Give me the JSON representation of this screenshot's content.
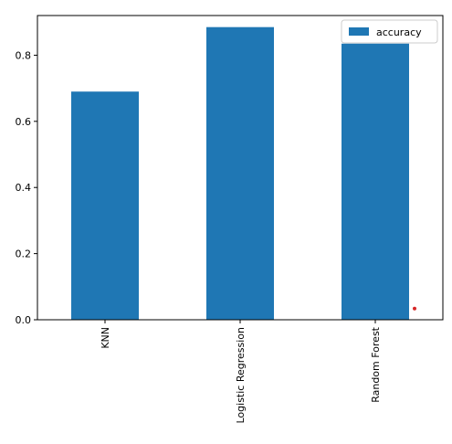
{
  "chart_data": {
    "type": "bar",
    "title": "",
    "xlabel": "",
    "ylabel": "",
    "categories": [
      "KNN",
      "Logistic Regression",
      "Random Forest"
    ],
    "series": [
      {
        "name": "accuracy",
        "values": [
          0.69,
          0.885,
          0.835
        ]
      }
    ],
    "ylim": [
      0,
      0.92
    ],
    "yticks": [
      0.0,
      0.2,
      0.4,
      0.6,
      0.8
    ],
    "ytick_labels": [
      "0.0",
      "0.2",
      "0.4",
      "0.6",
      "0.8"
    ],
    "grid": false,
    "legend": {
      "location": "top-right",
      "entries": [
        "accuracy"
      ]
    },
    "x_tick_rotation": "vertical",
    "bar_color": "#1f77b4",
    "marker": {
      "x_category": "Random Forest",
      "y": 0.034,
      "color": "#d62728"
    }
  }
}
